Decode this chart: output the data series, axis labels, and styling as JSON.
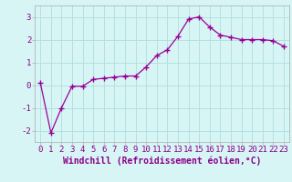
{
  "x": [
    0,
    1,
    2,
    3,
    4,
    5,
    6,
    7,
    8,
    9,
    10,
    11,
    12,
    13,
    14,
    15,
    16,
    17,
    18,
    19,
    20,
    21,
    22,
    23
  ],
  "y": [
    0.1,
    -2.1,
    -1.0,
    -0.05,
    -0.05,
    0.25,
    0.3,
    0.35,
    0.4,
    0.4,
    0.8,
    1.3,
    1.55,
    2.15,
    2.9,
    3.0,
    2.55,
    2.2,
    2.1,
    2.0,
    2.0,
    2.0,
    1.95,
    1.7
  ],
  "line_color": "#990099",
  "marker": "+",
  "marker_size": 4,
  "xlabel": "Windchill (Refroidissement éolien,°C)",
  "xlim": [
    -0.5,
    23.5
  ],
  "ylim": [
    -2.5,
    3.5
  ],
  "yticks": [
    -2,
    -1,
    0,
    1,
    2,
    3
  ],
  "bg_color": "#d8f5f5",
  "grid_color": "#b0dede",
  "spine_color": "#aaaaaa",
  "tick_label_color": "#880088",
  "xlabel_color": "#880088",
  "xlabel_fontsize": 7,
  "tick_fontsize": 6.5,
  "line_width": 0.9,
  "marker_edge_width": 1.0
}
